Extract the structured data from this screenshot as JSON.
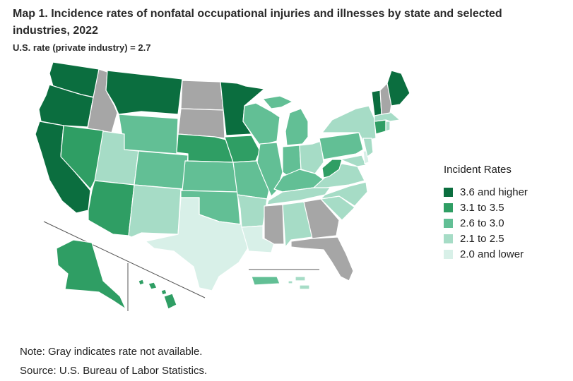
{
  "title": "Map 1. Incidence rates of nonfatal occupational injuries and illnesses by state and selected industries, 2022",
  "subtitle": "U.S. rate (private industry) = 2.7",
  "legend": {
    "title": "Incident Rates",
    "items": [
      {
        "label": "3.6 and higher",
        "color": "#0b6e3f"
      },
      {
        "label": "3.1 to 3.5",
        "color": "#2f9e64"
      },
      {
        "label": "2.6 to 3.0",
        "color": "#62bf95"
      },
      {
        "label": "2.1 to 2.5",
        "color": "#a6dcc6"
      },
      {
        "label": "2.0 and lower",
        "color": "#d8f0e8"
      }
    ],
    "na_color": "#a6a6a6"
  },
  "note": "Note: Gray indicates rate not available.",
  "source": "Source: U.S. Bureau of Labor Statistics.",
  "states": [
    {
      "id": "WA",
      "class": 0
    },
    {
      "id": "OR",
      "class": 0
    },
    {
      "id": "CA",
      "class": 0
    },
    {
      "id": "MT",
      "class": 0
    },
    {
      "id": "MN",
      "class": 0
    },
    {
      "id": "ME",
      "class": 0
    },
    {
      "id": "VT",
      "class": 0
    },
    {
      "id": "AK",
      "class": 1
    },
    {
      "id": "NV",
      "class": 1
    },
    {
      "id": "AZ",
      "class": 1
    },
    {
      "id": "NE",
      "class": 1
    },
    {
      "id": "IA",
      "class": 1
    },
    {
      "id": "WV",
      "class": 1
    },
    {
      "id": "CT",
      "class": 1
    },
    {
      "id": "HI",
      "class": 1
    },
    {
      "id": "WY",
      "class": 2
    },
    {
      "id": "CO",
      "class": 2
    },
    {
      "id": "KS",
      "class": 2
    },
    {
      "id": "OK",
      "class": 2
    },
    {
      "id": "MO",
      "class": 2
    },
    {
      "id": "WI",
      "class": 2
    },
    {
      "id": "IL",
      "class": 2
    },
    {
      "id": "IN",
      "class": 2
    },
    {
      "id": "MI",
      "class": 2
    },
    {
      "id": "KY",
      "class": 2
    },
    {
      "id": "PA",
      "class": 2
    },
    {
      "id": "PR",
      "class": 2
    },
    {
      "id": "UT",
      "class": 3
    },
    {
      "id": "NM",
      "class": 3
    },
    {
      "id": "AR",
      "class": 3
    },
    {
      "id": "TN",
      "class": 3
    },
    {
      "id": "AL",
      "class": 3
    },
    {
      "id": "SC",
      "class": 3
    },
    {
      "id": "NC",
      "class": 3
    },
    {
      "id": "VA",
      "class": 3
    },
    {
      "id": "OH",
      "class": 3
    },
    {
      "id": "NY",
      "class": 3
    },
    {
      "id": "NJ",
      "class": 3
    },
    {
      "id": "MA",
      "class": 3
    },
    {
      "id": "MD",
      "class": 3
    },
    {
      "id": "RI",
      "class": 3
    },
    {
      "id": "VI",
      "class": 3
    },
    {
      "id": "TX",
      "class": 4
    },
    {
      "id": "LA",
      "class": 4
    },
    {
      "id": "DE",
      "class": 4
    },
    {
      "id": "ID",
      "class": "na"
    },
    {
      "id": "ND",
      "class": "na"
    },
    {
      "id": "SD",
      "class": "na"
    },
    {
      "id": "MS",
      "class": "na"
    },
    {
      "id": "GA",
      "class": "na"
    },
    {
      "id": "FL",
      "class": "na"
    },
    {
      "id": "NH",
      "class": "na"
    }
  ]
}
